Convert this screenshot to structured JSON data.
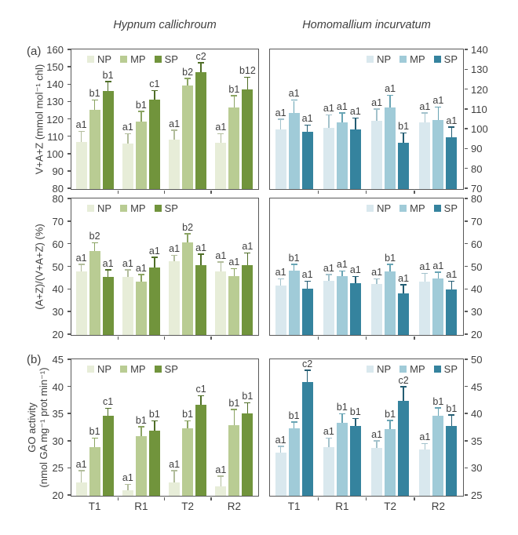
{
  "figure": {
    "panel_label_a": "(a)",
    "panel_label_b": "(b)",
    "column_titles": [
      "Hypnum callichroum",
      "Homomallium incurvatum"
    ],
    "series_labels": [
      "NP",
      "MP",
      "SP"
    ],
    "x_categories": [
      "T1",
      "R1",
      "T2",
      "R2"
    ],
    "palettes": {
      "green": {
        "bars": [
          "#e7edd8",
          "#b9cc93",
          "#71943c"
        ],
        "errors": [
          "#b2bd9c",
          "#8ba463",
          "#4f6e27"
        ]
      },
      "blue": {
        "bars": [
          "#d9e8ee",
          "#a0cbd8",
          "#35839e"
        ],
        "errors": [
          "#a3c2cc",
          "#68a4b4",
          "#245d73"
        ]
      }
    },
    "axis_color": "#595959",
    "text_color": "#3f3f3f"
  },
  "chart_data": [
    {
      "type": "bar",
      "position": "top-left",
      "species": "Hypnum callichroum",
      "ylabel": "V+A+Z (mmol mol⁻¹ chl)",
      "ylim": [
        80,
        160
      ],
      "yticks": [
        80,
        90,
        100,
        110,
        120,
        130,
        140,
        150,
        160
      ],
      "axis_side": "left",
      "legend_position": "left",
      "palette": "green",
      "show_xticklabels": false,
      "categories": [
        "T1",
        "R1",
        "T2",
        "R2"
      ],
      "series": [
        {
          "name": "NP",
          "values": [
            107,
            106,
            108.5,
            106.5
          ],
          "errors": [
            6,
            5.5,
            5,
            5
          ],
          "labels": [
            "a1",
            "a1",
            "a1",
            "a1"
          ]
        },
        {
          "name": "MP",
          "values": [
            125.5,
            119,
            139.5,
            127
          ],
          "errors": [
            5.5,
            5.5,
            4,
            6.5
          ],
          "labels": [
            "b1",
            "b1",
            "b2",
            "b1"
          ]
        },
        {
          "name": "SP",
          "values": [
            136.5,
            131.5,
            147.5,
            137.5
          ],
          "errors": [
            5,
            5,
            5,
            6.5
          ],
          "labels": [
            "b1",
            "c1",
            "c2",
            "b12"
          ]
        }
      ]
    },
    {
      "type": "bar",
      "position": "top-right",
      "species": "Homomallium incurvatum",
      "ylabel": "",
      "ylim": [
        70,
        140
      ],
      "yticks": [
        70,
        80,
        90,
        100,
        110,
        120,
        130,
        140
      ],
      "axis_side": "right",
      "legend_position": "right",
      "palette": "blue",
      "show_xticklabels": false,
      "categories": [
        "T1",
        "R1",
        "T2",
        "R2"
      ],
      "series": [
        {
          "name": "NP",
          "values": [
            100,
            101,
            104.5,
            103.5
          ],
          "errors": [
            5,
            6,
            5.5,
            4.5
          ],
          "labels": [
            "a1",
            "a1",
            "a1",
            "a1"
          ]
        },
        {
          "name": "MP",
          "values": [
            108.5,
            103.5,
            111,
            105
          ],
          "errors": [
            6,
            4.5,
            6,
            6
          ],
          "labels": [
            "a1",
            "a1",
            "a1",
            "a1"
          ]
        },
        {
          "name": "SP",
          "values": [
            99,
            100,
            93.5,
            96
          ],
          "errors": [
            3,
            5.5,
            4.5,
            5
          ],
          "labels": [
            "a1",
            "a1",
            "b1",
            "a1"
          ]
        }
      ]
    },
    {
      "type": "bar",
      "position": "middle-left",
      "species": "Hypnum callichroum",
      "ylabel": "(A+Z)/(V+A+Z) (%)",
      "ylim": [
        20,
        80
      ],
      "yticks": [
        20,
        30,
        40,
        50,
        60,
        70,
        80
      ],
      "axis_side": "left",
      "legend_position": "left",
      "palette": "green",
      "show_xticklabels": false,
      "categories": [
        "T1",
        "R1",
        "T2",
        "R2"
      ],
      "series": [
        {
          "name": "NP",
          "values": [
            48,
            45.5,
            52.5,
            48
          ],
          "errors": [
            3,
            3,
            2.5,
            4
          ],
          "labels": [
            "a1",
            "a1",
            "a1",
            "a1"
          ]
        },
        {
          "name": "MP",
          "values": [
            57,
            43.5,
            61,
            46
          ],
          "errors": [
            3.5,
            3,
            3.5,
            3
          ],
          "labels": [
            "b2",
            "a1",
            "b2",
            "a1"
          ]
        },
        {
          "name": "SP",
          "values": [
            45.5,
            50,
            51,
            51
          ],
          "errors": [
            3,
            4,
            4.5,
            5
          ],
          "labels": [
            "a1",
            "a1",
            "a1",
            "a1"
          ]
        }
      ]
    },
    {
      "type": "bar",
      "position": "middle-right",
      "species": "Homomallium incurvatum",
      "ylabel": "",
      "ylim": [
        20,
        80
      ],
      "yticks": [
        20,
        30,
        40,
        50,
        60,
        70,
        80
      ],
      "axis_side": "right",
      "legend_position": "right",
      "palette": "blue",
      "show_xticklabels": false,
      "categories": [
        "T1",
        "R1",
        "T2",
        "R2"
      ],
      "series": [
        {
          "name": "NP",
          "values": [
            42,
            44,
            42.5,
            43.5
          ],
          "errors": [
            2.5,
            2.5,
            2,
            3.5
          ],
          "labels": [
            "a1",
            "a1",
            "a1",
            "a1"
          ]
        },
        {
          "name": "MP",
          "values": [
            48.5,
            46,
            48,
            45
          ],
          "errors": [
            2.5,
            2,
            3,
            2.5
          ],
          "labels": [
            "b1",
            "a1",
            "b1",
            "a1"
          ]
        },
        {
          "name": "SP",
          "values": [
            40.5,
            43,
            38.5,
            40
          ],
          "errors": [
            3,
            2.5,
            3.5,
            3.5
          ],
          "labels": [
            "a1",
            "a1",
            "a1",
            "a1"
          ]
        }
      ]
    },
    {
      "type": "bar",
      "position": "bottom-left",
      "species": "Hypnum callichroum",
      "ylabel": "GO activity (nmol GA mg⁻¹ prot min⁻¹)",
      "ylabel_lines": [
        "GO activity",
        "(nmol GA mg⁻¹ prot min⁻¹)"
      ],
      "ylim": [
        20,
        45
      ],
      "yticks": [
        20,
        25,
        30,
        35,
        40,
        45
      ],
      "axis_side": "left",
      "legend_position": "left",
      "palette": "green",
      "show_xticklabels": true,
      "categories": [
        "T1",
        "R1",
        "T2",
        "R2"
      ],
      "series": [
        {
          "name": "NP",
          "values": [
            22.5,
            21,
            22.5,
            21.8
          ],
          "errors": [
            2,
            1,
            2,
            1.7
          ],
          "labels": [
            "a1",
            "a1",
            "a1",
            "a1"
          ]
        },
        {
          "name": "MP",
          "values": [
            29,
            31,
            32.5,
            33
          ],
          "errors": [
            1.5,
            1.6,
            1.2,
            2.8
          ],
          "labels": [
            "b1",
            "b1",
            "b1",
            "b1"
          ]
        },
        {
          "name": "SP",
          "values": [
            34.8,
            32,
            36.7,
            35.2
          ],
          "errors": [
            1.2,
            1.7,
            1.6,
            1.8
          ],
          "labels": [
            "c1",
            "b1",
            "c1",
            "b1"
          ]
        }
      ]
    },
    {
      "type": "bar",
      "position": "bottom-right",
      "species": "Homomallium incurvatum",
      "ylabel": "",
      "ylim": [
        25,
        50
      ],
      "yticks": [
        25,
        30,
        35,
        40,
        45,
        50
      ],
      "axis_side": "right",
      "legend_position": "right",
      "palette": "blue",
      "show_xticklabels": true,
      "categories": [
        "T1",
        "R1",
        "T2",
        "R2"
      ],
      "series": [
        {
          "name": "NP",
          "values": [
            33,
            34,
            33.8,
            33.5
          ],
          "errors": [
            1,
            1.5,
            1.2,
            1
          ],
          "labels": [
            "a1",
            "a1",
            "a1",
            "a1"
          ]
        },
        {
          "name": "MP",
          "values": [
            37.5,
            38.5,
            37.3,
            39.8
          ],
          "errors": [
            1,
            1.5,
            1.5,
            1.3
          ],
          "labels": [
            "b1",
            "b1",
            "b1",
            "b1"
          ]
        },
        {
          "name": "SP",
          "values": [
            46,
            37.8,
            42.5,
            37.8
          ],
          "errors": [
            2,
            1.3,
            2.5,
            2
          ],
          "labels": [
            "c2",
            "b1",
            "c2",
            "b1"
          ]
        }
      ]
    }
  ]
}
